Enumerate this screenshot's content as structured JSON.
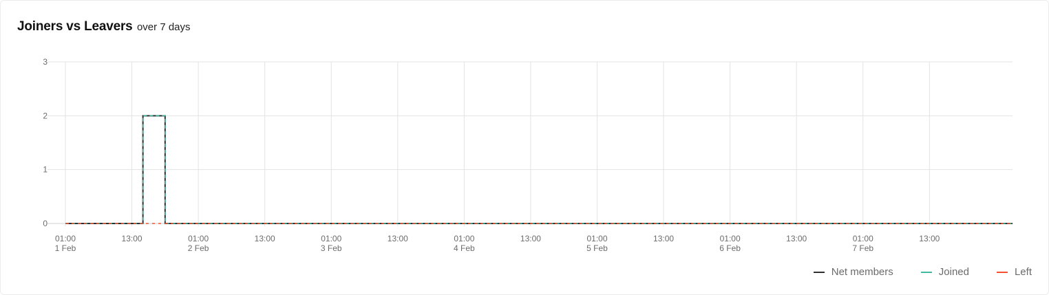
{
  "header": {
    "title": "Joiners vs Leavers",
    "subtitle": "over 7 days"
  },
  "colors": {
    "net": "#2f2f2f",
    "joined": "#3fb9a1",
    "left": "#f0502d",
    "grid": "#e3e3e3"
  },
  "chart_data": {
    "type": "line",
    "title": "Joiners vs Leavers",
    "subtitle": "over 7 days",
    "step": true,
    "grid": true,
    "legend_position": "bottom-right",
    "x_range": [
      "2023-02-01 01:00",
      "2023-02-08 04:00"
    ],
    "ylim": [
      0,
      3
    ],
    "y_ticks": [
      "0",
      "1",
      "2",
      "3"
    ],
    "x_ticks": [
      {
        "time": "01:00",
        "date": "1 Feb",
        "at": "2023-02-01 01:00"
      },
      {
        "time": "13:00",
        "date": "",
        "at": "2023-02-01 13:00"
      },
      {
        "time": "01:00",
        "date": "2 Feb",
        "at": "2023-02-02 01:00"
      },
      {
        "time": "13:00",
        "date": "",
        "at": "2023-02-02 13:00"
      },
      {
        "time": "01:00",
        "date": "3 Feb",
        "at": "2023-02-03 01:00"
      },
      {
        "time": "13:00",
        "date": "",
        "at": "2023-02-03 13:00"
      },
      {
        "time": "01:00",
        "date": "4 Feb",
        "at": "2023-02-04 01:00"
      },
      {
        "time": "13:00",
        "date": "",
        "at": "2023-02-04 13:00"
      },
      {
        "time": "01:00",
        "date": "5 Feb",
        "at": "2023-02-05 01:00"
      },
      {
        "time": "13:00",
        "date": "",
        "at": "2023-02-05 13:00"
      },
      {
        "time": "01:00",
        "date": "6 Feb",
        "at": "2023-02-06 01:00"
      },
      {
        "time": "13:00",
        "date": "",
        "at": "2023-02-06 13:00"
      },
      {
        "time": "01:00",
        "date": "7 Feb",
        "at": "2023-02-07 01:00"
      },
      {
        "time": "13:00",
        "date": "",
        "at": "2023-02-07 13:00"
      }
    ],
    "series": [
      {
        "name": "Net members",
        "color": "#2f2f2f",
        "points": [
          {
            "x": "2023-02-01 01:00",
            "y": 0
          },
          {
            "x": "2023-02-01 15:00",
            "y": 2
          },
          {
            "x": "2023-02-01 19:00",
            "y": 0
          },
          {
            "x": "2023-02-08 04:00",
            "y": 0
          }
        ]
      },
      {
        "name": "Joined",
        "color": "#3fb9a1",
        "points": [
          {
            "x": "2023-02-01 01:00",
            "y": 0
          },
          {
            "x": "2023-02-01 15:00",
            "y": 2
          },
          {
            "x": "2023-02-01 19:00",
            "y": 0
          },
          {
            "x": "2023-02-08 04:00",
            "y": 0
          }
        ]
      },
      {
        "name": "Left",
        "color": "#f0502d",
        "points": [
          {
            "x": "2023-02-01 01:00",
            "y": 0
          },
          {
            "x": "2023-02-08 04:00",
            "y": 0
          }
        ]
      }
    ]
  },
  "legend": [
    {
      "label": "Net members",
      "color": "#2f2f2f"
    },
    {
      "label": "Joined",
      "color": "#3fb9a1"
    },
    {
      "label": "Left",
      "color": "#f0502d"
    }
  ]
}
